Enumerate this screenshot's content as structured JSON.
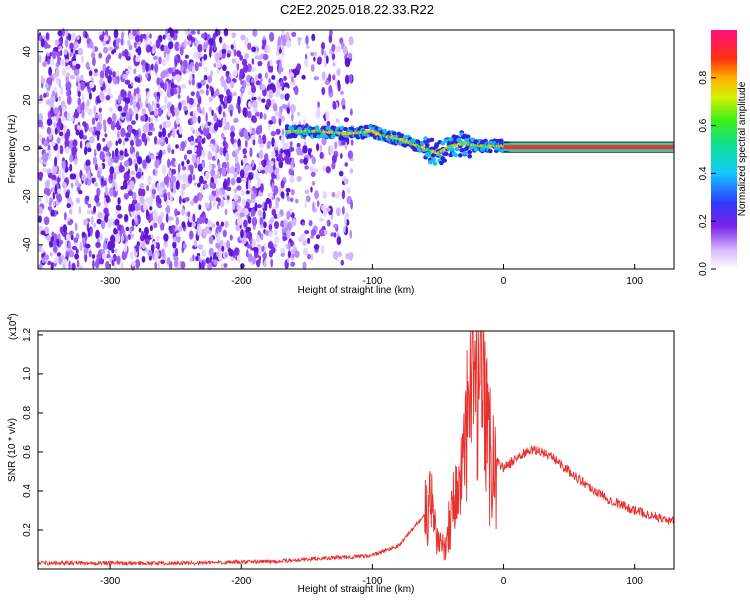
{
  "title": "C2E2.2025.018.22.33.R22",
  "chart_data": [
    {
      "type": "heatmap",
      "xlabel": "Height of straight line (km)",
      "ylabel": "Frequency (Hz)",
      "xlim": [
        -355,
        130
      ],
      "ylim": [
        -50,
        49
      ],
      "xticks": [
        "-300",
        "-200",
        "-100",
        "0",
        "100"
      ],
      "yticks": [
        "-40",
        "-20",
        "0",
        "20",
        "40"
      ],
      "colorbar": {
        "label": "Normalized spectral amplitude",
        "range": [
          0,
          1
        ],
        "ticks": [
          "0.0",
          "0.2",
          "0.4",
          "0.6",
          "0.8"
        ]
      },
      "ridge": {
        "x": [
          -165,
          -140,
          -120,
          -100,
          -90,
          -80,
          -70,
          -60,
          -50,
          -40,
          -30,
          -20,
          -10,
          0,
          130
        ],
        "y": [
          7,
          7,
          6,
          7,
          5,
          4,
          2,
          0,
          -2,
          1,
          2,
          1,
          1,
          1,
          0.5
        ]
      }
    },
    {
      "type": "line",
      "xlabel": "Height of straight line (km)",
      "ylabel": "SNR (10 * v/v)",
      "multiplier": "(x10",
      "multiplier_exp": "4",
      "xlim": [
        -355,
        130
      ],
      "ylim": [
        0,
        1.22
      ],
      "xticks": [
        "-300",
        "-200",
        "-100",
        "0",
        "100"
      ],
      "yticks": [
        "0.2",
        "0.4",
        "0.6",
        "0.8",
        "1.0",
        "1.2"
      ],
      "series": [
        {
          "color": "#e8302e",
          "x": [
            -355,
            -300,
            -250,
            -200,
            -170,
            -150,
            -120,
            -100,
            -80,
            -70,
            -60,
            -55,
            -50,
            -45,
            -40,
            -35,
            -30,
            -25,
            -22,
            -20,
            -18,
            -15,
            -12,
            -10,
            -5,
            0,
            5,
            10,
            20,
            30,
            40,
            50,
            60,
            70,
            80,
            90,
            100,
            110,
            120,
            130
          ],
          "y": [
            0.03,
            0.03,
            0.03,
            0.035,
            0.04,
            0.05,
            0.06,
            0.07,
            0.12,
            0.2,
            0.28,
            0.32,
            0.15,
            0.1,
            0.3,
            0.4,
            0.55,
            0.85,
            1.0,
            1.2,
            0.9,
            0.75,
            0.65,
            0.6,
            0.55,
            0.52,
            0.54,
            0.57,
            0.61,
            0.6,
            0.56,
            0.5,
            0.45,
            0.4,
            0.36,
            0.33,
            0.3,
            0.28,
            0.26,
            0.24
          ]
        }
      ]
    }
  ]
}
